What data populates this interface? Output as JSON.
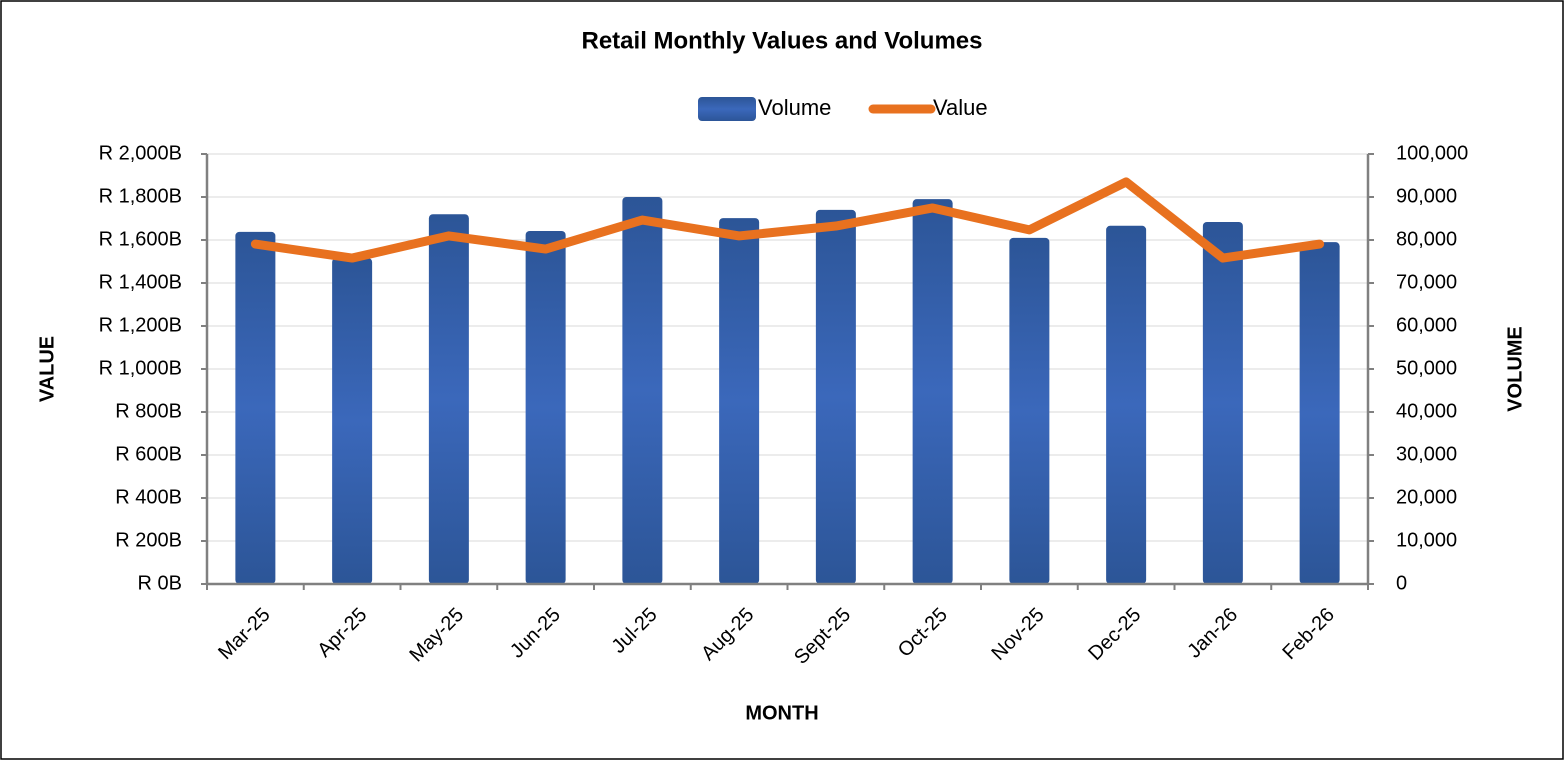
{
  "chart_data": {
    "type": "bar_line",
    "title": "Retail Monthly Values and Volumes",
    "xlabel": "MONTH",
    "ylabel": "VALUE",
    "y2label": "VOLUME",
    "categories": [
      "Mar-25",
      "Apr-25",
      "May-25",
      "Jun-25",
      "Jul-25",
      "Aug-25",
      "Sept-25",
      "Oct-25",
      "Nov-25",
      "Dec-25",
      "Jan-26",
      "Feb-26"
    ],
    "series": [
      {
        "name": "Volume",
        "type": "bar",
        "axis": "y2",
        "color": "#3a66b8",
        "values": [
          81900,
          75800,
          86000,
          82100,
          90000,
          85100,
          87000,
          89500,
          80500,
          83300,
          84200,
          79500
        ]
      },
      {
        "name": "Value",
        "type": "line",
        "axis": "y",
        "color": "#e8711f",
        "values": [
          1581,
          1516,
          1619,
          1558,
          1693,
          1619,
          1665,
          1749,
          1647,
          1870,
          1516,
          1581
        ]
      }
    ],
    "ylim": [
      0,
      2000
    ],
    "yticks": [
      {
        "value": 0,
        "label": "R 0B"
      },
      {
        "value": 200,
        "label": "R 200B"
      },
      {
        "value": 400,
        "label": "R 400B"
      },
      {
        "value": 600,
        "label": "R 600B"
      },
      {
        "value": 800,
        "label": "R 800B"
      },
      {
        "value": 1000,
        "label": "R 1,000B"
      },
      {
        "value": 1200,
        "label": "R 1,200B"
      },
      {
        "value": 1400,
        "label": "R 1,400B"
      },
      {
        "value": 1600,
        "label": "R 1,600B"
      },
      {
        "value": 1800,
        "label": "R 1,800B"
      },
      {
        "value": 2000,
        "label": "R 2,000B"
      }
    ],
    "y2lim": [
      0,
      100000
    ],
    "y2ticks": [
      0,
      {
        "value": 10000,
        "label": "10,000"
      },
      {
        "value": 20000,
        "label": "20,000"
      },
      {
        "value": 30000,
        "label": "30,000"
      },
      {
        "value": 40000,
        "label": "40,000"
      },
      {
        "value": 50000,
        "label": "50,000"
      },
      {
        "value": 60000,
        "label": "60,000"
      },
      {
        "value": 70000,
        "label": "70,000"
      },
      {
        "value": 80000,
        "label": "80,000"
      },
      {
        "value": 90000,
        "label": "90,000"
      },
      {
        "value": 100000,
        "label": "100,000"
      }
    ],
    "grid": true,
    "legend": "top"
  }
}
